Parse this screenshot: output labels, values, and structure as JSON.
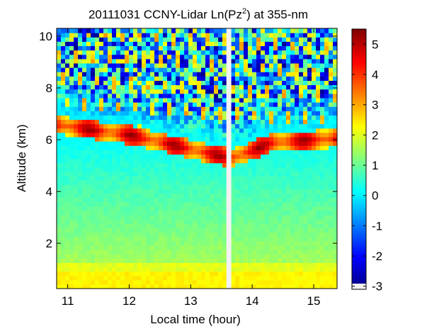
{
  "chart_data": {
    "type": "heatmap",
    "title": "20111031 CCNY-Lidar Ln(Pz",
    "title_superscript": "2",
    "title_suffix": ") at 355-nm",
    "xlabel": "Local time (hour)",
    "ylabel": "Altitude (km)",
    "xlim": [
      10.82,
      15.38
    ],
    "ylim": [
      0.25,
      10.3
    ],
    "x_ticks": [
      {
        "value": 11,
        "label": "11"
      },
      {
        "value": 12,
        "label": "12"
      },
      {
        "value": 13,
        "label": "13"
      },
      {
        "value": 14,
        "label": "14"
      },
      {
        "value": 15,
        "label": "15"
      }
    ],
    "y_ticks": [
      {
        "value": 2,
        "label": "2"
      },
      {
        "value": 4,
        "label": "4"
      },
      {
        "value": 6,
        "label": "6"
      },
      {
        "value": 8,
        "label": "8"
      },
      {
        "value": 10,
        "label": "10"
      }
    ],
    "colorbar": {
      "range": [
        -3.1,
        5.5
      ],
      "colormap": "jet",
      "ticks": [
        {
          "value": 5,
          "label": "5"
        },
        {
          "value": 4,
          "label": "4"
        },
        {
          "value": 3,
          "label": "3"
        },
        {
          "value": 2,
          "label": "2"
        },
        {
          "value": 1,
          "label": "1"
        },
        {
          "value": 0,
          "label": "0"
        },
        {
          "value": -1,
          "label": "-1"
        },
        {
          "value": -2,
          "label": "-2"
        },
        {
          "value": -3,
          "label": "-3"
        }
      ]
    },
    "data_gap": [
      13.58,
      13.66
    ],
    "grid": false,
    "colors": {
      "background": "#ffffff",
      "axis": "#000000",
      "gap": "#f2f2f2"
    }
  }
}
